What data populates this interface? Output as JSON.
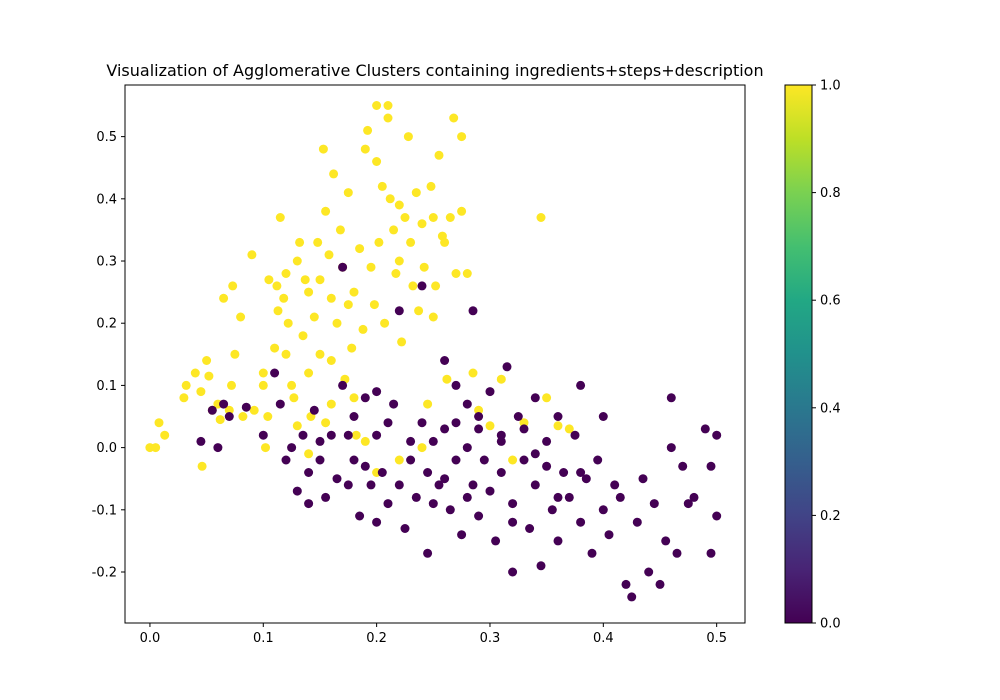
{
  "chart_data": {
    "type": "scatter",
    "title": "Visualization of Agglomerative Clusters containing ingredients+steps+description",
    "xlabel": "",
    "ylabel": "",
    "xlim": [
      -0.022,
      0.525
    ],
    "ylim": [
      -0.282,
      0.583
    ],
    "xticks": [
      0.0,
      0.1,
      0.2,
      0.3,
      0.4,
      0.5
    ],
    "yticks": [
      -0.2,
      -0.1,
      0.0,
      0.1,
      0.2,
      0.3,
      0.4,
      0.5
    ],
    "grid": false,
    "colormap": "viridis",
    "colorbar": {
      "range": [
        0.0,
        1.0
      ],
      "ticks": [
        0.0,
        0.2,
        0.4,
        0.6,
        0.8,
        1.0
      ],
      "tick_labels": [
        "0.0",
        "0.2",
        "0.4",
        "0.6",
        "0.8",
        "1.0"
      ]
    },
    "series": [
      {
        "cluster": 1,
        "color": "#fde725",
        "points": [
          [
            0.0,
            0.0
          ],
          [
            0.005,
            0.0
          ],
          [
            0.008,
            0.04
          ],
          [
            0.013,
            0.02
          ],
          [
            0.03,
            0.08
          ],
          [
            0.032,
            0.1
          ],
          [
            0.04,
            0.12
          ],
          [
            0.045,
            0.09
          ],
          [
            0.046,
            -0.03
          ],
          [
            0.05,
            0.14
          ],
          [
            0.052,
            0.115
          ],
          [
            0.055,
            0.06
          ],
          [
            0.06,
            0.07
          ],
          [
            0.062,
            0.045
          ],
          [
            0.065,
            0.24
          ],
          [
            0.07,
            0.06
          ],
          [
            0.072,
            0.1
          ],
          [
            0.073,
            0.26
          ],
          [
            0.075,
            0.15
          ],
          [
            0.08,
            0.21
          ],
          [
            0.082,
            0.05
          ],
          [
            0.09,
            0.31
          ],
          [
            0.092,
            0.06
          ],
          [
            0.1,
            0.1
          ],
          [
            0.1,
            0.12
          ],
          [
            0.102,
            0.0
          ],
          [
            0.104,
            0.05
          ],
          [
            0.105,
            0.27
          ],
          [
            0.11,
            0.16
          ],
          [
            0.112,
            0.26
          ],
          [
            0.113,
            0.22
          ],
          [
            0.115,
            0.37
          ],
          [
            0.118,
            0.24
          ],
          [
            0.12,
            0.28
          ],
          [
            0.12,
            0.15
          ],
          [
            0.122,
            0.2
          ],
          [
            0.125,
            0.1
          ],
          [
            0.127,
            0.08
          ],
          [
            0.13,
            0.3
          ],
          [
            0.13,
            0.035
          ],
          [
            0.132,
            0.33
          ],
          [
            0.135,
            0.18
          ],
          [
            0.137,
            0.27
          ],
          [
            0.14,
            0.25
          ],
          [
            0.14,
            0.12
          ],
          [
            0.142,
            0.05
          ],
          [
            0.145,
            0.21
          ],
          [
            0.148,
            0.33
          ],
          [
            0.15,
            0.27
          ],
          [
            0.15,
            0.15
          ],
          [
            0.153,
            0.48
          ],
          [
            0.155,
            0.38
          ],
          [
            0.155,
            0.04
          ],
          [
            0.158,
            0.31
          ],
          [
            0.16,
            0.24
          ],
          [
            0.16,
            0.14
          ],
          [
            0.162,
            0.44
          ],
          [
            0.165,
            0.2
          ],
          [
            0.168,
            0.35
          ],
          [
            0.17,
            0.29
          ],
          [
            0.172,
            0.11
          ],
          [
            0.175,
            0.41
          ],
          [
            0.175,
            0.23
          ],
          [
            0.178,
            0.16
          ],
          [
            0.18,
            0.25
          ],
          [
            0.182,
            0.02
          ],
          [
            0.185,
            0.32
          ],
          [
            0.188,
            0.19
          ],
          [
            0.19,
            0.48
          ],
          [
            0.192,
            0.51
          ],
          [
            0.195,
            0.29
          ],
          [
            0.198,
            0.23
          ],
          [
            0.2,
            0.55
          ],
          [
            0.2,
            0.46
          ],
          [
            0.202,
            0.33
          ],
          [
            0.205,
            0.42
          ],
          [
            0.207,
            0.2
          ],
          [
            0.21,
            0.55
          ],
          [
            0.21,
            0.53
          ],
          [
            0.212,
            0.4
          ],
          [
            0.215,
            0.35
          ],
          [
            0.217,
            0.28
          ],
          [
            0.22,
            0.39
          ],
          [
            0.22,
            0.3
          ],
          [
            0.222,
            0.17
          ],
          [
            0.225,
            0.37
          ],
          [
            0.228,
            0.5
          ],
          [
            0.23,
            0.33
          ],
          [
            0.232,
            0.26
          ],
          [
            0.235,
            0.41
          ],
          [
            0.237,
            0.22
          ],
          [
            0.24,
            0.36
          ],
          [
            0.242,
            0.29
          ],
          [
            0.245,
            0.07
          ],
          [
            0.248,
            0.42
          ],
          [
            0.25,
            0.37
          ],
          [
            0.25,
            0.21
          ],
          [
            0.252,
            0.26
          ],
          [
            0.255,
            0.47
          ],
          [
            0.258,
            0.34
          ],
          [
            0.26,
            0.33
          ],
          [
            0.262,
            0.11
          ],
          [
            0.265,
            0.37
          ],
          [
            0.268,
            0.53
          ],
          [
            0.27,
            0.28
          ],
          [
            0.275,
            0.5
          ],
          [
            0.275,
            0.38
          ],
          [
            0.28,
            0.28
          ],
          [
            0.285,
            0.12
          ],
          [
            0.29,
            0.06
          ],
          [
            0.3,
            0.035
          ],
          [
            0.31,
            0.11
          ],
          [
            0.32,
            -0.02
          ],
          [
            0.33,
            0.04
          ],
          [
            0.345,
            0.37
          ],
          [
            0.35,
            0.08
          ],
          [
            0.36,
            0.035
          ],
          [
            0.37,
            0.03
          ],
          [
            0.16,
            0.07
          ],
          [
            0.18,
            0.08
          ],
          [
            0.14,
            -0.01
          ],
          [
            0.2,
            -0.04
          ],
          [
            0.19,
            0.01
          ],
          [
            0.22,
            -0.02
          ],
          [
            0.24,
            0.0
          ]
        ]
      },
      {
        "cluster": 0,
        "color": "#440154",
        "points": [
          [
            0.045,
            0.01
          ],
          [
            0.055,
            0.06
          ],
          [
            0.06,
            0.0
          ],
          [
            0.065,
            0.07
          ],
          [
            0.07,
            0.05
          ],
          [
            0.085,
            0.065
          ],
          [
            0.1,
            0.02
          ],
          [
            0.11,
            0.12
          ],
          [
            0.115,
            0.07
          ],
          [
            0.12,
            -0.02
          ],
          [
            0.125,
            0.0
          ],
          [
            0.13,
            -0.07
          ],
          [
            0.135,
            0.02
          ],
          [
            0.14,
            -0.04
          ],
          [
            0.14,
            -0.09
          ],
          [
            0.145,
            0.06
          ],
          [
            0.15,
            -0.02
          ],
          [
            0.155,
            -0.08
          ],
          [
            0.16,
            0.02
          ],
          [
            0.165,
            -0.05
          ],
          [
            0.17,
            0.1
          ],
          [
            0.17,
            0.29
          ],
          [
            0.175,
            -0.06
          ],
          [
            0.175,
            0.02
          ],
          [
            0.18,
            0.05
          ],
          [
            0.185,
            -0.11
          ],
          [
            0.19,
            -0.03
          ],
          [
            0.19,
            0.08
          ],
          [
            0.195,
            -0.06
          ],
          [
            0.2,
            -0.12
          ],
          [
            0.2,
            0.02
          ],
          [
            0.205,
            -0.04
          ],
          [
            0.21,
            0.04
          ],
          [
            0.21,
            -0.09
          ],
          [
            0.215,
            0.07
          ],
          [
            0.22,
            -0.06
          ],
          [
            0.22,
            0.22
          ],
          [
            0.225,
            -0.13
          ],
          [
            0.23,
            0.01
          ],
          [
            0.23,
            -0.02
          ],
          [
            0.235,
            -0.08
          ],
          [
            0.24,
            0.26
          ],
          [
            0.24,
            0.04
          ],
          [
            0.245,
            -0.04
          ],
          [
            0.245,
            -0.17
          ],
          [
            0.25,
            0.01
          ],
          [
            0.255,
            -0.06
          ],
          [
            0.26,
            0.14
          ],
          [
            0.26,
            0.03
          ],
          [
            0.265,
            -0.1
          ],
          [
            0.27,
            0.1
          ],
          [
            0.27,
            -0.02
          ],
          [
            0.275,
            -0.14
          ],
          [
            0.28,
            0.07
          ],
          [
            0.28,
            0.0
          ],
          [
            0.285,
            -0.06
          ],
          [
            0.285,
            0.22
          ],
          [
            0.29,
            0.03
          ],
          [
            0.29,
            -0.11
          ],
          [
            0.295,
            -0.02
          ],
          [
            0.3,
            0.09
          ],
          [
            0.3,
            -0.07
          ],
          [
            0.305,
            -0.15
          ],
          [
            0.31,
            0.02
          ],
          [
            0.31,
            -0.04
          ],
          [
            0.315,
            0.13
          ],
          [
            0.32,
            -0.09
          ],
          [
            0.32,
            -0.2
          ],
          [
            0.325,
            0.05
          ],
          [
            0.33,
            -0.02
          ],
          [
            0.335,
            -0.13
          ],
          [
            0.34,
            0.08
          ],
          [
            0.34,
            -0.06
          ],
          [
            0.345,
            -0.19
          ],
          [
            0.35,
            0.01
          ],
          [
            0.355,
            -0.1
          ],
          [
            0.36,
            0.05
          ],
          [
            0.36,
            -0.15
          ],
          [
            0.365,
            -0.04
          ],
          [
            0.37,
            -0.08
          ],
          [
            0.375,
            0.02
          ],
          [
            0.38,
            0.1
          ],
          [
            0.38,
            -0.12
          ],
          [
            0.385,
            -0.05
          ],
          [
            0.39,
            -0.17
          ],
          [
            0.395,
            -0.02
          ],
          [
            0.4,
            0.05
          ],
          [
            0.4,
            -0.1
          ],
          [
            0.405,
            -0.14
          ],
          [
            0.41,
            -0.06
          ],
          [
            0.415,
            -0.08
          ],
          [
            0.42,
            -0.22
          ],
          [
            0.425,
            -0.24
          ],
          [
            0.43,
            -0.12
          ],
          [
            0.435,
            -0.05
          ],
          [
            0.44,
            -0.2
          ],
          [
            0.445,
            -0.09
          ],
          [
            0.45,
            -0.22
          ],
          [
            0.455,
            -0.15
          ],
          [
            0.46,
            0.08
          ],
          [
            0.46,
            0.0
          ],
          [
            0.465,
            -0.17
          ],
          [
            0.47,
            -0.03
          ],
          [
            0.475,
            -0.09
          ],
          [
            0.48,
            -0.08
          ],
          [
            0.49,
            0.03
          ],
          [
            0.495,
            -0.03
          ],
          [
            0.495,
            -0.17
          ],
          [
            0.5,
            0.02
          ],
          [
            0.5,
            -0.11
          ],
          [
            0.31,
            0.01
          ],
          [
            0.33,
            0.03
          ],
          [
            0.35,
            -0.03
          ],
          [
            0.27,
            0.04
          ],
          [
            0.25,
            -0.09
          ],
          [
            0.36,
            -0.08
          ],
          [
            0.29,
            0.05
          ],
          [
            0.2,
            0.09
          ],
          [
            0.15,
            0.01
          ],
          [
            0.18,
            -0.02
          ],
          [
            0.26,
            -0.05
          ],
          [
            0.32,
            -0.12
          ],
          [
            0.28,
            -0.08
          ],
          [
            0.34,
            -0.01
          ],
          [
            0.38,
            -0.04
          ]
        ]
      }
    ]
  }
}
